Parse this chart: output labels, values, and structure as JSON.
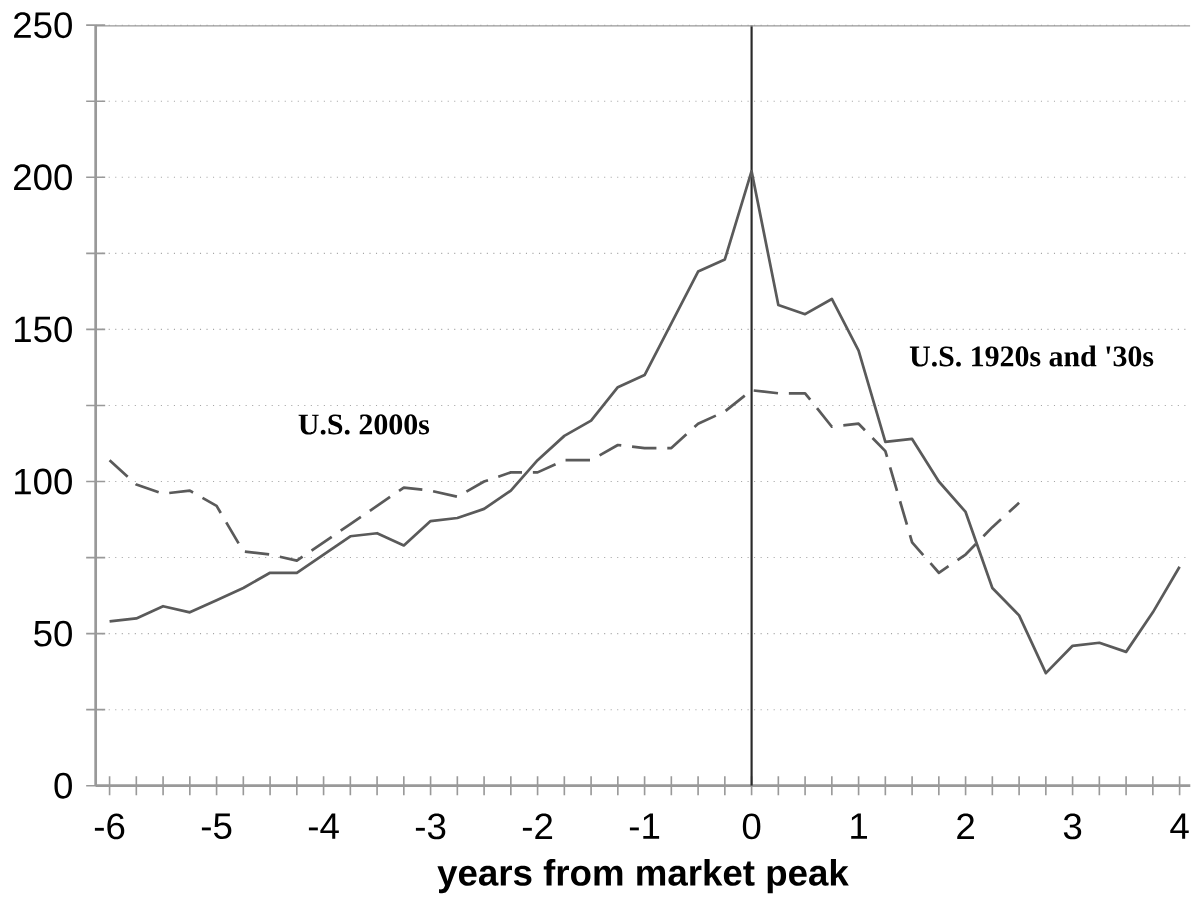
{
  "chart_data": {
    "type": "line",
    "xlabel": "years from market peak",
    "x": [
      -6,
      -5.75,
      -5.5,
      -5.25,
      -5,
      -4.75,
      -4.5,
      -4.25,
      -4,
      -3.75,
      -3.5,
      -3.25,
      -3,
      -2.75,
      -2.5,
      -2.25,
      -2,
      -1.75,
      -1.5,
      -1.25,
      -1,
      -0.75,
      -0.5,
      -0.25,
      0,
      0.25,
      0.5,
      0.75,
      1,
      1.25,
      1.5,
      1.75,
      2,
      2.25,
      2.5,
      2.75,
      3,
      3.25,
      3.5,
      3.75,
      4
    ],
    "series": [
      {
        "name": "U.S. 2000s",
        "color": "#5a5a5a",
        "line_style": "dashed",
        "x": [
          -6,
          -5.75,
          -5.5,
          -5.25,
          -5,
          -4.75,
          -4.5,
          -4.25,
          -4,
          -3.75,
          -3.5,
          -3.25,
          -3,
          -2.75,
          -2.5,
          -2.25,
          -2,
          -1.75,
          -1.5,
          -1.25,
          -1,
          -0.75,
          -0.5,
          -0.25,
          0,
          0.25,
          0.5,
          0.75,
          1,
          1.25,
          1.5,
          1.75,
          2,
          2.25,
          2.5
        ],
        "values": [
          107,
          99,
          96,
          97,
          92,
          77,
          76,
          74,
          80,
          86,
          92,
          98,
          97,
          95,
          100,
          103,
          103,
          107,
          107,
          112,
          111,
          111,
          119,
          123,
          130,
          129,
          129,
          118,
          119,
          110,
          80,
          70,
          76,
          85,
          93
        ]
      },
      {
        "name": "U.S. 1920s and '30s",
        "color": "#5a5a5a",
        "line_style": "solid",
        "values": [
          54,
          55,
          59,
          57,
          61,
          65,
          70,
          70,
          76,
          82,
          83,
          79,
          87,
          88,
          91,
          97,
          107,
          115,
          120,
          131,
          135,
          152,
          169,
          173,
          202,
          158,
          155,
          160,
          143,
          113,
          114,
          100,
          90,
          65,
          56,
          37,
          46,
          47,
          44,
          57,
          72
        ]
      }
    ],
    "xlim": [
      -6.13,
      4.1
    ],
    "ylim": [
      0,
      250
    ],
    "xticks": [
      -6,
      {
        "value": -5.75,
        "label": null
      },
      {
        "value": -5.5,
        "label": null
      },
      {
        "value": -5.25,
        "label": null
      },
      -5,
      {
        "value": -4.75,
        "label": null
      },
      {
        "value": -4.5,
        "label": null
      },
      {
        "value": -4.25,
        "label": null
      },
      -4,
      {
        "value": -3.75,
        "label": null
      },
      {
        "value": -3.5,
        "label": null
      },
      {
        "value": -3.25,
        "label": null
      },
      -3,
      {
        "value": -2.75,
        "label": null
      },
      {
        "value": -2.5,
        "label": null
      },
      {
        "value": -2.25,
        "label": null
      },
      -2,
      {
        "value": -1.75,
        "label": null
      },
      {
        "value": -1.5,
        "label": null
      },
      {
        "value": -1.25,
        "label": null
      },
      -1,
      {
        "value": -0.75,
        "label": null
      },
      {
        "value": -0.5,
        "label": null
      },
      {
        "value": -0.25,
        "label": null
      },
      0,
      {
        "value": 0.25,
        "label": null
      },
      {
        "value": 0.5,
        "label": null
      },
      {
        "value": 0.75,
        "label": null
      },
      1,
      {
        "value": 1.25,
        "label": null
      },
      {
        "value": 1.5,
        "label": null
      },
      {
        "value": 1.75,
        "label": null
      },
      2,
      {
        "value": 2.25,
        "label": null
      },
      {
        "value": 2.5,
        "label": null
      },
      {
        "value": 2.75,
        "label": null
      },
      3,
      {
        "value": 3.25,
        "label": null
      },
      {
        "value": 3.5,
        "label": null
      },
      {
        "value": 3.75,
        "label": null
      },
      4
    ],
    "yticks": [
      0,
      {
        "value": 25,
        "label": null
      },
      50,
      {
        "value": 75,
        "label": null
      },
      100,
      {
        "value": 125,
        "label": null
      },
      150,
      {
        "value": 175,
        "label": null
      },
      200,
      {
        "value": 225,
        "label": null
      },
      250
    ],
    "grid": "y",
    "marker": "none",
    "ref_lines": [
      {
        "axis": "x",
        "value": 0,
        "color": "#2a2a2a",
        "line_style": "solid"
      }
    ]
  }
}
